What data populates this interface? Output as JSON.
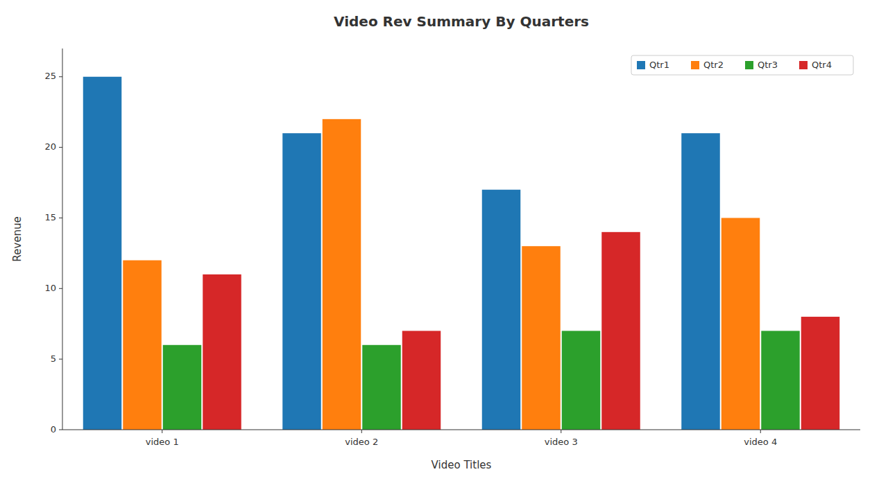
{
  "chart_data": {
    "type": "bar",
    "title": "Video Rev Summary By Quarters",
    "xlabel": "Video Titles",
    "ylabel": "Revenue",
    "categories": [
      "video 1",
      "video 2",
      "video 3",
      "video 4"
    ],
    "series": [
      {
        "name": "Qtr1",
        "color": "#1f77b4",
        "values": [
          25,
          21,
          17,
          21
        ]
      },
      {
        "name": "Qtr2",
        "color": "#ff7f0e",
        "values": [
          12,
          22,
          13,
          15
        ]
      },
      {
        "name": "Qtr3",
        "color": "#2ca02c",
        "values": [
          6,
          6,
          7,
          7
        ]
      },
      {
        "name": "Qtr4",
        "color": "#d62728",
        "values": [
          11,
          7,
          14,
          8
        ]
      }
    ],
    "ylim": [
      0,
      27
    ],
    "yticks": [
      0,
      5,
      10,
      15,
      20,
      25
    ],
    "grid": false,
    "legend": "upper right"
  }
}
